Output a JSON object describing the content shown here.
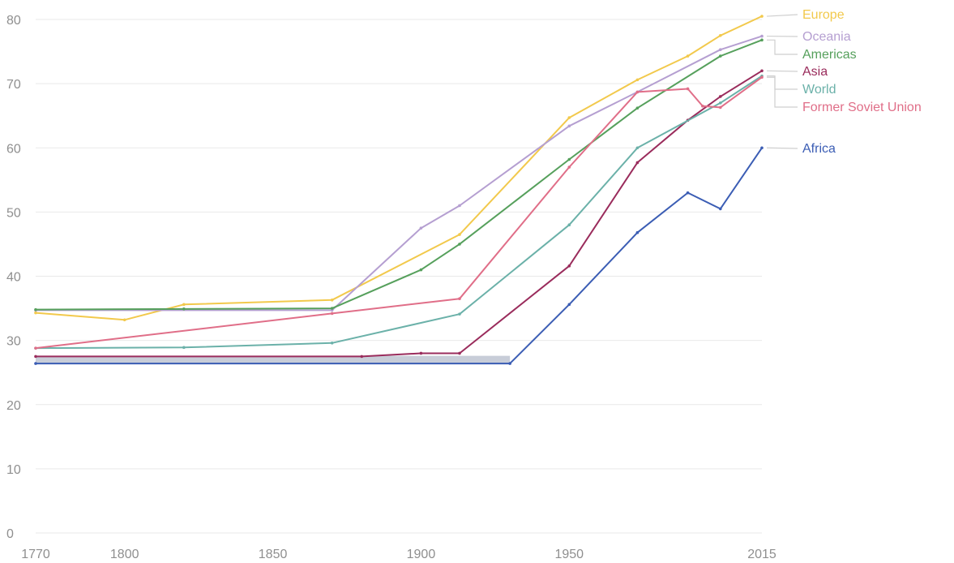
{
  "chart_data": {
    "type": "line",
    "title": "",
    "xlabel": "",
    "ylabel": "",
    "xlim": [
      1770,
      2015
    ],
    "ylim": [
      0,
      80
    ],
    "grid": true,
    "legend": "right-end labels",
    "x_ticks": [
      1770,
      1800,
      1850,
      1900,
      1950,
      2015
    ],
    "y_ticks": [
      0,
      10,
      20,
      30,
      40,
      50,
      60,
      70,
      80
    ],
    "series": [
      {
        "name": "Europe",
        "color": "#f2c94c",
        "points": [
          [
            1770,
            34.3
          ],
          [
            1800,
            33.2
          ],
          [
            1820,
            35.6
          ],
          [
            1870,
            36.3
          ],
          [
            1913,
            46.5
          ],
          [
            1950,
            64.7
          ],
          [
            1973,
            70.6
          ],
          [
            1990,
            74.3
          ],
          [
            2001,
            77.5
          ],
          [
            2015,
            80.5
          ]
        ]
      },
      {
        "name": "Oceania",
        "color": "#b59fd1",
        "points": [
          [
            1770,
            34.7
          ],
          [
            1870,
            34.7
          ],
          [
            1900,
            47.5
          ],
          [
            1913,
            51
          ],
          [
            1950,
            63.4
          ],
          [
            1973,
            68.7
          ],
          [
            2001,
            75.3
          ],
          [
            2015,
            77.4
          ]
        ]
      },
      {
        "name": "Americas",
        "color": "#56a05c",
        "points": [
          [
            1770,
            34.8
          ],
          [
            1820,
            34.9
          ],
          [
            1870,
            35
          ],
          [
            1900,
            41
          ],
          [
            1913,
            45
          ],
          [
            1950,
            58.2
          ],
          [
            1973,
            66.2
          ],
          [
            2001,
            74.3
          ],
          [
            2015,
            76.8
          ]
        ]
      },
      {
        "name": "Asia",
        "color": "#9a2c5c",
        "points": [
          [
            1770,
            27.5
          ],
          [
            1880,
            27.5
          ],
          [
            1900,
            28
          ],
          [
            1913,
            28
          ],
          [
            1950,
            41.6
          ],
          [
            1973,
            57.7
          ],
          [
            1990,
            64.3
          ],
          [
            2001,
            68
          ],
          [
            2015,
            72
          ]
        ]
      },
      {
        "name": "World",
        "color": "#6bb1a9",
        "points": [
          [
            1770,
            28.8
          ],
          [
            1820,
            28.9
          ],
          [
            1870,
            29.6
          ],
          [
            1913,
            34.1
          ],
          [
            1950,
            48
          ],
          [
            1973,
            60
          ],
          [
            2001,
            67
          ],
          [
            2015,
            71.2
          ]
        ]
      },
      {
        "name": "Former Soviet Union",
        "color": "#e06e88",
        "points": [
          [
            1770,
            28.8
          ],
          [
            1870,
            34.2
          ],
          [
            1913,
            36.5
          ],
          [
            1950,
            57
          ],
          [
            1973,
            68.7
          ],
          [
            1990,
            69.2
          ],
          [
            1995,
            66.5
          ],
          [
            2001,
            66.3
          ],
          [
            2015,
            71
          ]
        ]
      },
      {
        "name": "Africa",
        "color": "#3b5db4",
        "points": [
          [
            1770,
            26.4
          ],
          [
            1930,
            26.4
          ],
          [
            1950,
            35.6
          ],
          [
            1973,
            46.8
          ],
          [
            1990,
            53
          ],
          [
            2001,
            50.5
          ],
          [
            2015,
            60
          ]
        ]
      }
    ],
    "shaded_band": {
      "x": [
        1770,
        1930
      ],
      "y": [
        26.4,
        27.6
      ],
      "color": "#c8cdd8"
    }
  }
}
